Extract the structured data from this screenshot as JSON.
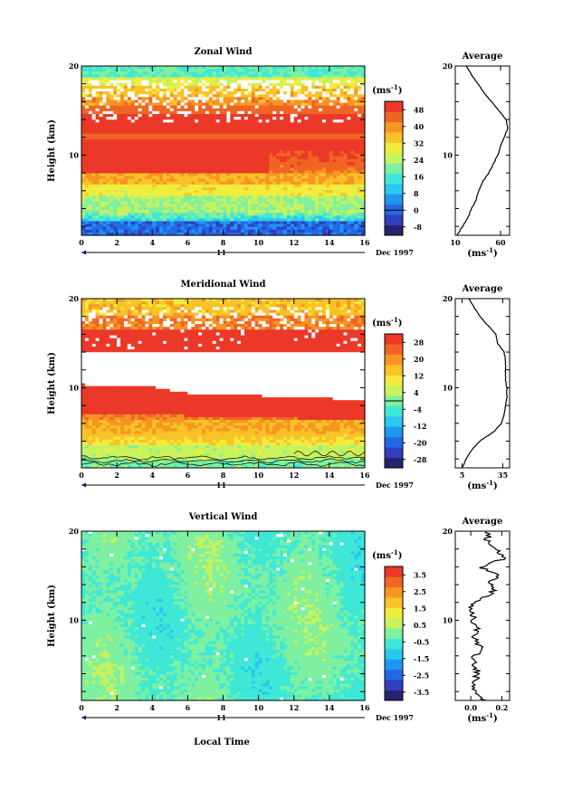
{
  "date_label": "Dec 1997",
  "day_label": "11",
  "xlabel": "Local Time",
  "units_label": "(ms",
  "units_sup": "-1",
  "palette": [
    "#26236e",
    "#2f3fbf",
    "#2468e6",
    "#1f96f0",
    "#27c9ef",
    "#3fe8d6",
    "#7ef0a0",
    "#c6f25e",
    "#f3ec3d",
    "#f9c227",
    "#f79522",
    "#f06524",
    "#ec3828"
  ],
  "panels": [
    {
      "title": "Zonal Wind",
      "ylabel": "Height (km)",
      "cb_ticks": [
        "48",
        "40",
        "32",
        "24",
        "16",
        "8",
        "0",
        "-8"
      ],
      "avg_title": "Average",
      "avg_xticks": [
        "10",
        "60"
      ],
      "avg_units": "(ms",
      "avg_units_sup": "-1",
      "avg_close": ")"
    },
    {
      "title": "Meridional Wind",
      "ylabel": "Height (km)",
      "cb_ticks": [
        "28",
        "20",
        "12",
        "4",
        "-4",
        "-12",
        "-20",
        "-28"
      ],
      "avg_title": "Average",
      "avg_xticks": [
        "5",
        "35"
      ],
      "avg_units": "(ms",
      "avg_units_sup": "-1",
      "avg_close": ")"
    },
    {
      "title": "Vertical Wind",
      "ylabel": "Height (km)",
      "cb_ticks": [
        "3.5",
        "2.5",
        "1.5",
        "0.5",
        "-0.5",
        "-1.5",
        "-2.5",
        "-3.5"
      ],
      "avg_title": "Average",
      "avg_xticks": [
        "0.0",
        "0.2"
      ],
      "avg_units": "(ms",
      "avg_units_sup": "-1",
      "avg_close": ")"
    }
  ],
  "chart_data": [
    {
      "type": "heatmap",
      "title": "Zonal Wind",
      "xlabel": "",
      "ylabel": "Height (km)",
      "x_ticks": [
        0,
        2,
        4,
        6,
        8,
        10,
        12,
        14,
        16
      ],
      "y_ticks": [
        10,
        20
      ],
      "xlim": [
        0,
        16
      ],
      "ylim": [
        1,
        20
      ],
      "colorbar": {
        "label": "(ms-1)",
        "ticks": [
          48,
          40,
          32,
          24,
          16,
          8,
          0,
          -8
        ],
        "range": [
          -12,
          52
        ]
      },
      "average_profile": {
        "title": "Average",
        "xlim": [
          10,
          70
        ],
        "x_ticks": [
          10,
          60
        ],
        "height": [
          1,
          2,
          3,
          4,
          5,
          6,
          7,
          8,
          9,
          10,
          11,
          12,
          13,
          14,
          15,
          16,
          17,
          18,
          19,
          20
        ],
        "value": [
          12,
          18,
          24,
          28,
          33,
          36,
          40,
          47,
          52,
          57,
          60,
          64,
          68,
          66,
          58,
          50,
          42,
          35,
          28,
          22
        ]
      }
    },
    {
      "type": "heatmap",
      "title": "Meridional Wind",
      "xlabel": "",
      "ylabel": "Height (km)",
      "x_ticks": [
        0,
        2,
        4,
        6,
        8,
        10,
        12,
        14,
        16
      ],
      "y_ticks": [
        10,
        20
      ],
      "xlim": [
        0,
        16
      ],
      "ylim": [
        1,
        20
      ],
      "colorbar": {
        "label": "(ms-1)",
        "ticks": [
          28,
          20,
          12,
          4,
          -4,
          -12,
          -20,
          -28
        ],
        "range": [
          -32,
          32
        ]
      },
      "average_profile": {
        "title": "Average",
        "xlim": [
          0,
          40
        ],
        "x_ticks": [
          5,
          35
        ],
        "height": [
          1,
          2,
          3,
          4,
          5,
          6,
          7,
          8,
          9,
          10,
          11,
          12,
          13,
          14,
          15,
          16,
          17,
          18,
          19,
          20
        ],
        "value": [
          5,
          8,
          12,
          18,
          28,
          34,
          36,
          37,
          38,
          38,
          37,
          37,
          37,
          36,
          31,
          30,
          24,
          18,
          14,
          10
        ]
      }
    },
    {
      "type": "heatmap",
      "title": "Vertical Wind",
      "xlabel": "Local Time",
      "ylabel": "Height (km)",
      "x_ticks": [
        0,
        2,
        4,
        6,
        8,
        10,
        12,
        14,
        16
      ],
      "y_ticks": [
        10,
        20
      ],
      "xlim": [
        0,
        16
      ],
      "ylim": [
        1,
        20
      ],
      "colorbar": {
        "label": "(ms-1)",
        "ticks": [
          3.5,
          2.5,
          1.5,
          0.5,
          -0.5,
          -1.5,
          -2.5,
          -3.5
        ],
        "range": [
          -4,
          4
        ]
      },
      "average_profile": {
        "title": "Average",
        "xlim": [
          -0.1,
          0.25
        ],
        "x_ticks": [
          0.0,
          0.2
        ],
        "height": [
          1,
          2,
          3,
          4,
          5,
          6,
          7,
          8,
          9,
          10,
          11,
          12,
          13,
          14,
          15,
          16,
          17,
          18,
          19,
          20
        ],
        "value": [
          0.1,
          0.03,
          0.02,
          0.05,
          0.01,
          0.03,
          0.06,
          0.02,
          0.05,
          0.02,
          0.0,
          0.03,
          0.15,
          0.12,
          0.18,
          0.06,
          0.22,
          0.15,
          0.1,
          0.12
        ]
      }
    }
  ]
}
